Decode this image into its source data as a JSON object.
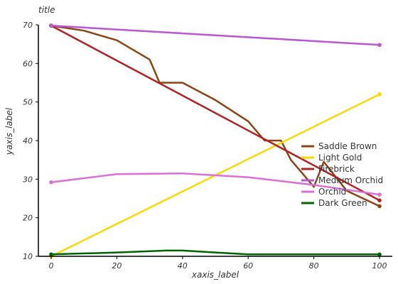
{
  "chart_data": {
    "type": "line",
    "title": "title",
    "xlabel": "xaxis_label",
    "ylabel": "yaxis_label",
    "xlim": [
      0,
      100
    ],
    "ylim": [
      10,
      70
    ],
    "x_ticks": [
      0,
      20,
      40,
      60,
      80,
      100
    ],
    "y_ticks": [
      10,
      20,
      30,
      40,
      50,
      60,
      70
    ],
    "grid": false,
    "legend_position": "right",
    "series": [
      {
        "name": "Saddle Brown",
        "color": "#8B4513",
        "x": [
          0,
          10,
          20,
          30,
          33,
          40,
          50,
          60,
          65,
          70,
          73,
          80,
          83,
          90,
          100
        ],
        "y": [
          69.8,
          68.5,
          66,
          61,
          55,
          55,
          50.5,
          45,
          40,
          40,
          35,
          28,
          34.5,
          27,
          23
        ]
      },
      {
        "name": "Light Gold",
        "color": "#FFD700",
        "x": [
          0,
          100
        ],
        "y": [
          10,
          52
        ]
      },
      {
        "name": "Firebrick",
        "color": "#B22222",
        "x": [
          0,
          100
        ],
        "y": [
          69.8,
          24.5
        ]
      },
      {
        "name": "Medium Orchid",
        "color": "#BA55D3",
        "x": [
          0,
          100
        ],
        "y": [
          69.8,
          64.8
        ]
      },
      {
        "name": "Orchid",
        "color": "#DA70D6",
        "x": [
          0,
          20,
          40,
          60,
          80,
          100
        ],
        "y": [
          29.2,
          31.3,
          31.5,
          30.5,
          28.5,
          26
        ]
      },
      {
        "name": "Dark Green",
        "color": "#006400",
        "x": [
          0,
          20,
          35,
          40,
          50,
          60,
          100
        ],
        "y": [
          10.5,
          11,
          11.5,
          11.5,
          11,
          10.5,
          10.5
        ]
      }
    ]
  }
}
